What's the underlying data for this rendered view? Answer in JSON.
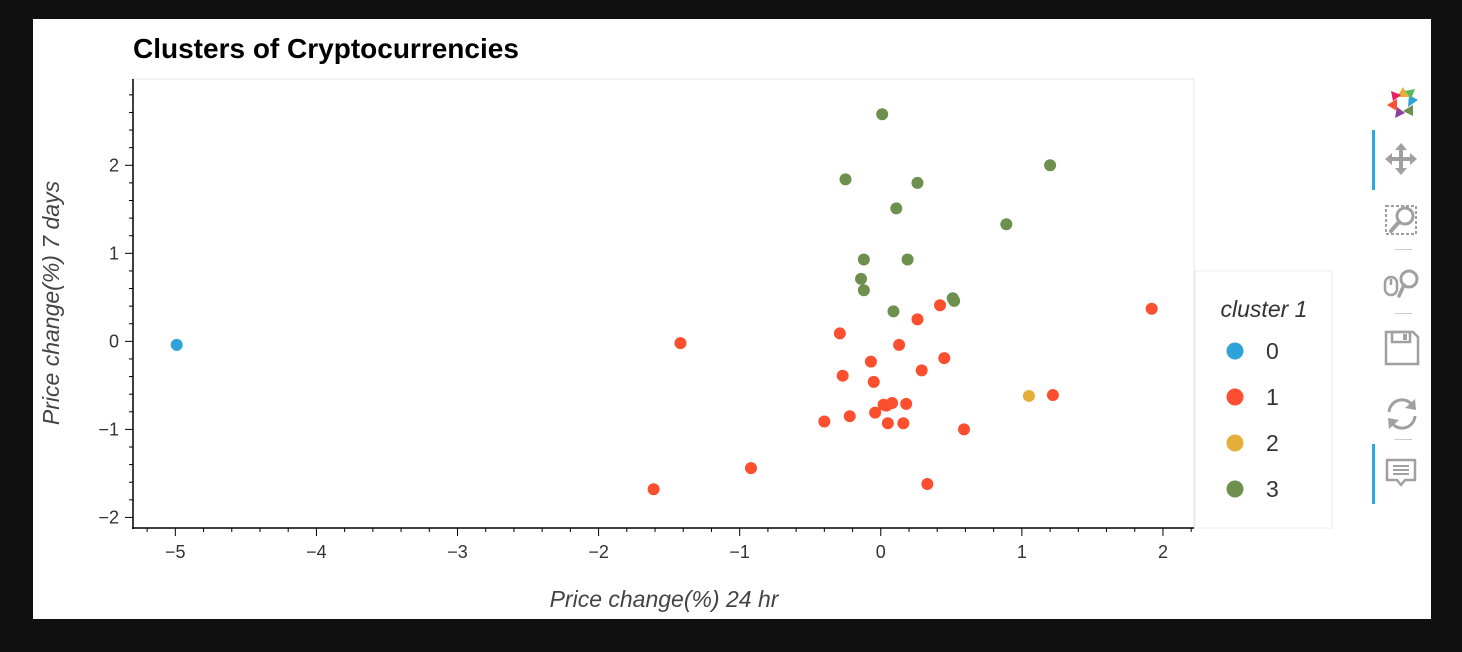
{
  "chart_data": {
    "type": "scatter",
    "title": "Clusters of Cryptocurrencies",
    "xlabel": "Price change(%) 24 hr",
    "ylabel": "Price change(%) 7 days",
    "xlim": [
      -5.3,
      2.22
    ],
    "ylim": [
      -2.12,
      2.98
    ],
    "xticks": [
      -5,
      -4,
      -3,
      -2,
      -1,
      0,
      1,
      2
    ],
    "yticks": [
      -2,
      -1,
      0,
      1,
      2
    ],
    "xtick_labels": [
      "−5",
      "−4",
      "−3",
      "−2",
      "−1",
      "0",
      "1",
      "2"
    ],
    "ytick_labels": [
      "−2",
      "−1",
      "0",
      "1",
      "2"
    ],
    "grid": false,
    "legend": {
      "title": "cluster 1",
      "placement": "right"
    },
    "series": [
      {
        "name": "0",
        "color": "#30a2da",
        "points": [
          [
            -4.99,
            -0.04
          ]
        ]
      },
      {
        "name": "1",
        "color": "#fc4f30",
        "points": [
          [
            -1.42,
            -0.02
          ],
          [
            -1.61,
            -1.68
          ],
          [
            -0.92,
            -1.44
          ],
          [
            -0.4,
            -0.91
          ],
          [
            -0.22,
            -0.85
          ],
          [
            -0.29,
            0.09
          ],
          [
            -0.27,
            -0.39
          ],
          [
            -0.07,
            -0.23
          ],
          [
            -0.05,
            -0.46
          ],
          [
            -0.04,
            -0.81
          ],
          [
            0.02,
            -0.72
          ],
          [
            0.04,
            -0.73
          ],
          [
            0.08,
            -0.7
          ],
          [
            0.05,
            -0.93
          ],
          [
            0.13,
            -0.04
          ],
          [
            0.16,
            -0.93
          ],
          [
            0.18,
            -0.71
          ],
          [
            0.26,
            0.25
          ],
          [
            0.29,
            -0.33
          ],
          [
            0.33,
            -1.62
          ],
          [
            0.42,
            0.41
          ],
          [
            0.45,
            -0.19
          ],
          [
            0.59,
            -1.0
          ],
          [
            1.22,
            -0.61
          ],
          [
            1.92,
            0.37
          ]
        ]
      },
      {
        "name": "2",
        "color": "#e5ae38",
        "points": [
          [
            1.05,
            -0.62
          ]
        ]
      },
      {
        "name": "3",
        "color": "#6d904f",
        "points": [
          [
            0.01,
            2.58
          ],
          [
            -0.25,
            1.84
          ],
          [
            0.26,
            1.8
          ],
          [
            0.11,
            1.51
          ],
          [
            1.2,
            2.0
          ],
          [
            0.89,
            1.33
          ],
          [
            -0.12,
            0.93
          ],
          [
            0.19,
            0.93
          ],
          [
            -0.14,
            0.71
          ],
          [
            -0.12,
            0.58
          ],
          [
            0.09,
            0.34
          ],
          [
            0.51,
            0.49
          ],
          [
            0.52,
            0.46
          ]
        ]
      }
    ]
  },
  "toolbar": {
    "tools": [
      {
        "icon": "bokeh-logo-icon",
        "active": false
      },
      {
        "icon": "pan-icon",
        "active": true
      },
      {
        "icon": "box-zoom-icon",
        "active": false
      },
      {
        "icon": "wheel-zoom-icon",
        "active": false
      },
      {
        "icon": "save-icon",
        "active": false
      },
      {
        "icon": "reset-icon",
        "active": false
      },
      {
        "icon": "hover-icon",
        "active": true
      }
    ]
  }
}
